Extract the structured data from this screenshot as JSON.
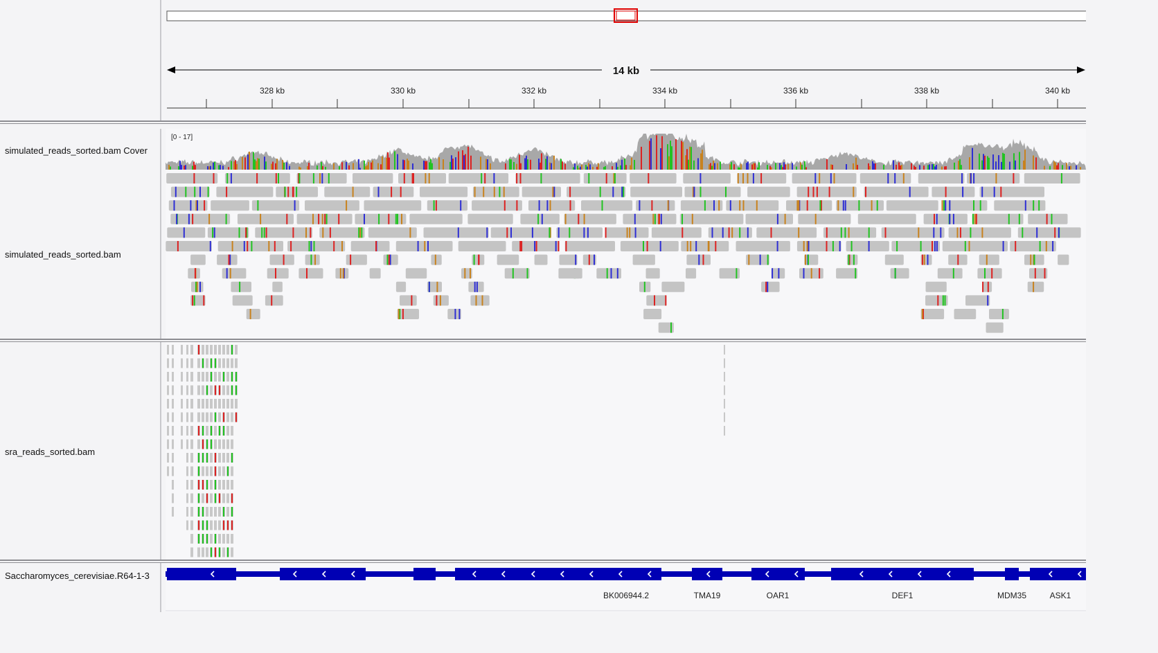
{
  "ruler": {
    "span_label": "14 kb",
    "ticks": [
      {
        "label": "328 kb"
      },
      {
        "label": "330 kb"
      },
      {
        "label": "332 kb"
      },
      {
        "label": "334 kb"
      },
      {
        "label": "336 kb"
      },
      {
        "label": "338 kb"
      },
      {
        "label": "340 kb"
      }
    ],
    "viewport_fraction": [
      0.49,
      0.51
    ]
  },
  "tracks": {
    "coverage": {
      "name": "simulated_reads_sorted.bam Cover",
      "range": "[0 - 17]",
      "color": "#a8a8a8"
    },
    "alignments": {
      "name": "simulated_reads_sorted.bam",
      "read_color": "#c4c4c4"
    },
    "sra": {
      "name": "sra_reads_sorted.bam"
    },
    "genes": {
      "name": "Saccharomyces_cerevisiae.R64-1-3",
      "color": "#0000b4",
      "features": [
        {
          "label": "BK006944.2"
        },
        {
          "label": "TMA19"
        },
        {
          "label": "OAR1"
        },
        {
          "label": "DEF1"
        },
        {
          "label": "MDM35"
        },
        {
          "label": "ASK1"
        }
      ]
    }
  },
  "mismatch_colors": {
    "A": "#22c322",
    "C": "#2e2ed4",
    "G": "#c8821e",
    "T": "#dc2222"
  },
  "chromosome": {
    "outline_color": "#555555",
    "viewport_color": "#e00000"
  }
}
